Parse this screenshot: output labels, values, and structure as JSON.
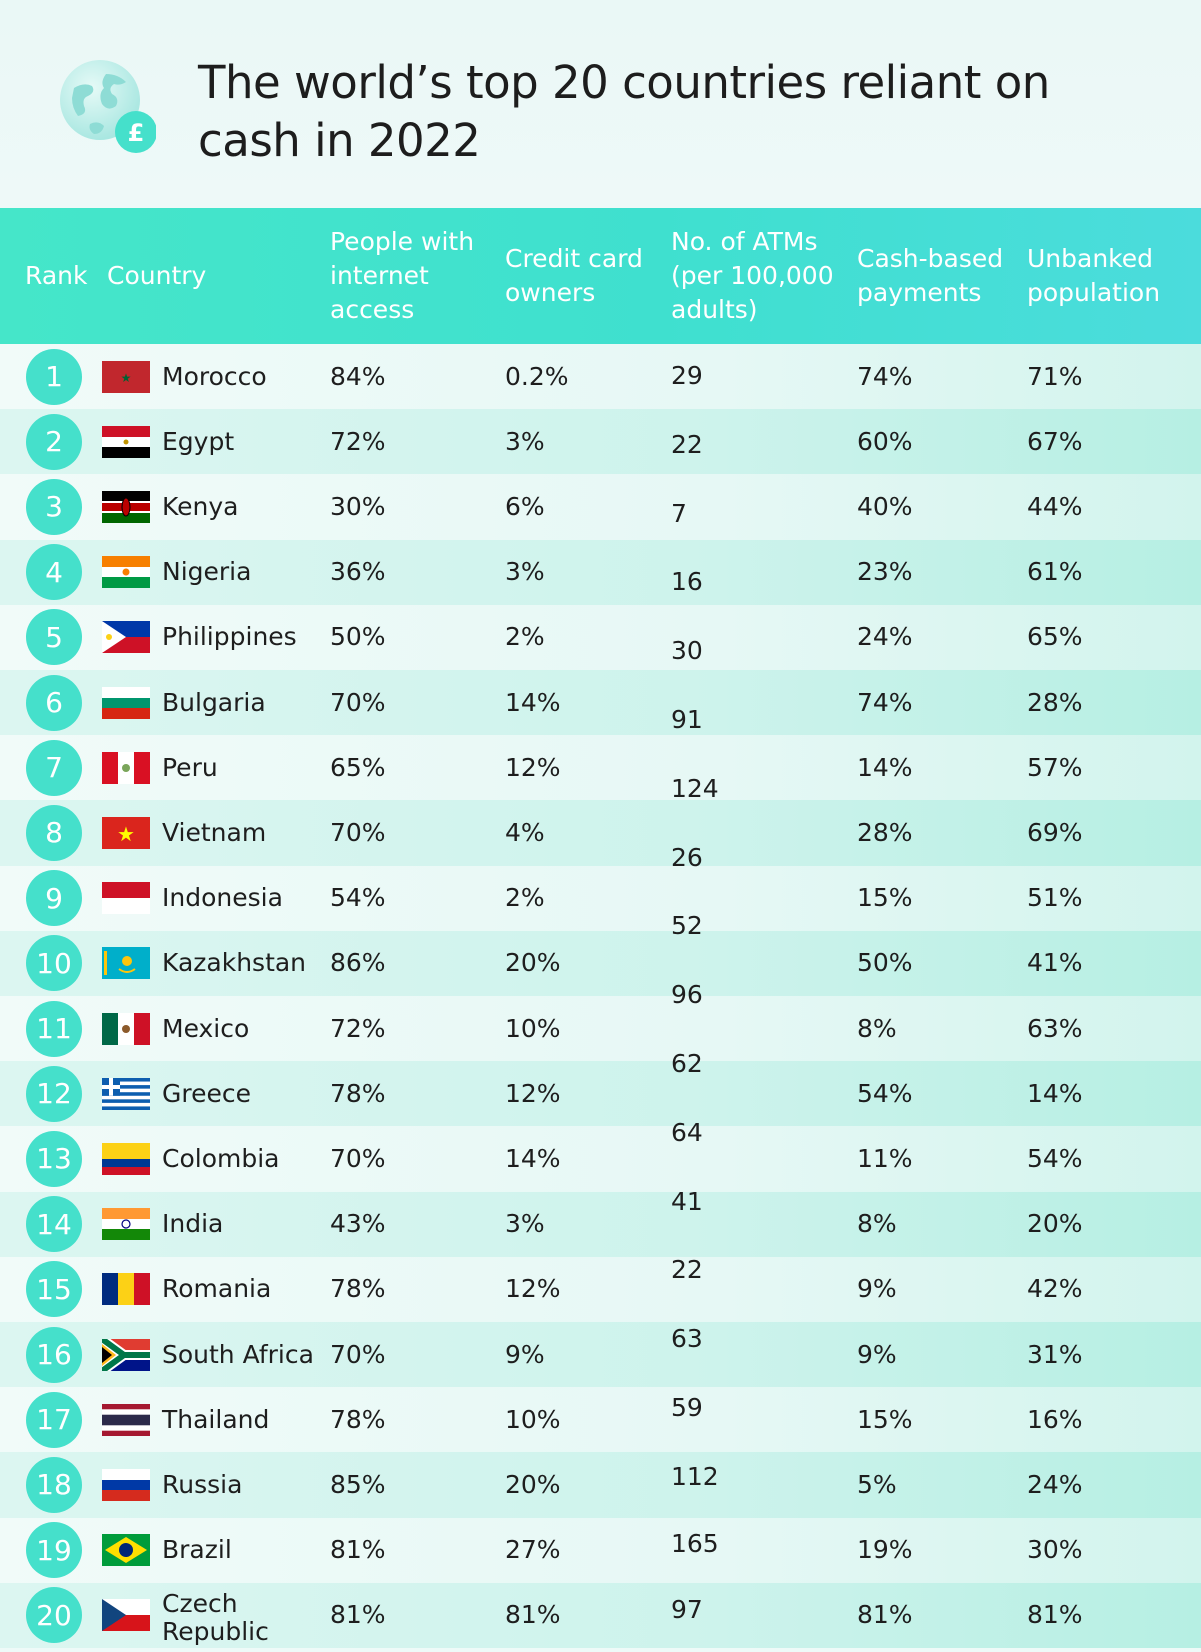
{
  "title": "The world’s top 20 countries reliant on cash in 2022",
  "icons": {
    "logo": "globe-pound-icon",
    "currency_symbol": "£"
  },
  "colors": {
    "accent": "#45e0cb",
    "header_text": "#ffffff",
    "title": "#1d1d1d"
  },
  "chart_data": {
    "type": "table",
    "title": "The world’s top 20 countries reliant on cash in 2022",
    "columns": [
      "Rank",
      "Country",
      "People with internet access",
      "Credit card owners",
      "No. of ATMs (per 100,000 adults)",
      "Cash-based payments",
      "Unbanked population"
    ],
    "rows": [
      {
        "rank": "1",
        "country": "Morocco",
        "flag": "morocco-flag-icon",
        "internet": "84%",
        "credit": "0.2%",
        "atms": "29",
        "cash": "74%",
        "unbanked": "71%"
      },
      {
        "rank": "2",
        "country": "Egypt",
        "flag": "egypt-flag-icon",
        "internet": "72%",
        "credit": "3%",
        "atms": "22",
        "cash": "60%",
        "unbanked": "67%"
      },
      {
        "rank": "3",
        "country": "Kenya",
        "flag": "kenya-flag-icon",
        "internet": "30%",
        "credit": "6%",
        "atms": "7",
        "cash": "40%",
        "unbanked": "44%"
      },
      {
        "rank": "4",
        "country": "Nigeria",
        "flag": "nigeria-flag-icon",
        "internet": "36%",
        "credit": "3%",
        "atms": "16",
        "cash": "23%",
        "unbanked": "61%"
      },
      {
        "rank": "5",
        "country": "Philippines",
        "flag": "philippines-flag-icon",
        "internet": "50%",
        "credit": "2%",
        "atms": "30",
        "cash": "24%",
        "unbanked": "65%"
      },
      {
        "rank": "6",
        "country": "Bulgaria",
        "flag": "bulgaria-flag-icon",
        "internet": "70%",
        "credit": "14%",
        "atms": "91",
        "cash": "74%",
        "unbanked": "28%"
      },
      {
        "rank": "7",
        "country": "Peru",
        "flag": "peru-flag-icon",
        "internet": "65%",
        "credit": "12%",
        "atms": "124",
        "cash": "14%",
        "unbanked": "57%"
      },
      {
        "rank": "8",
        "country": "Vietnam",
        "flag": "vietnam-flag-icon",
        "internet": "70%",
        "credit": "4%",
        "atms": "26",
        "cash": "28%",
        "unbanked": "69%"
      },
      {
        "rank": "9",
        "country": "Indonesia",
        "flag": "indonesia-flag-icon",
        "internet": "54%",
        "credit": "2%",
        "atms": "52",
        "cash": "15%",
        "unbanked": "51%"
      },
      {
        "rank": "10",
        "country": "Kazakhstan",
        "flag": "kazakhstan-flag-icon",
        "internet": "86%",
        "credit": "20%",
        "atms": "96",
        "cash": "50%",
        "unbanked": "41%"
      },
      {
        "rank": "11",
        "country": "Mexico",
        "flag": "mexico-flag-icon",
        "internet": "72%",
        "credit": "10%",
        "atms": "62",
        "cash": "8%",
        "unbanked": "63%"
      },
      {
        "rank": "12",
        "country": "Greece",
        "flag": "greece-flag-icon",
        "internet": "78%",
        "credit": "12%",
        "atms": "64",
        "cash": "54%",
        "unbanked": "14%"
      },
      {
        "rank": "13",
        "country": "Colombia",
        "flag": "colombia-flag-icon",
        "internet": "70%",
        "credit": "14%",
        "atms": "41",
        "cash": "11%",
        "unbanked": "54%"
      },
      {
        "rank": "14",
        "country": "India",
        "flag": "india-flag-icon",
        "internet": "43%",
        "credit": "3%",
        "atms": "22",
        "cash": "8%",
        "unbanked": "20%"
      },
      {
        "rank": "15",
        "country": "Romania",
        "flag": "romania-flag-icon",
        "internet": "78%",
        "credit": "12%",
        "atms": "63",
        "cash": "9%",
        "unbanked": "42%"
      },
      {
        "rank": "16",
        "country": "South Africa",
        "flag": "south-africa-flag-icon",
        "internet": "70%",
        "credit": "9%",
        "atms": "59",
        "cash": "9%",
        "unbanked": "31%"
      },
      {
        "rank": "17",
        "country": "Thailand",
        "flag": "thailand-flag-icon",
        "internet": "78%",
        "credit": "10%",
        "atms": "112",
        "cash": "15%",
        "unbanked": "16%"
      },
      {
        "rank": "18",
        "country": "Russia",
        "flag": "russia-flag-icon",
        "internet": "85%",
        "credit": "20%",
        "atms": "165",
        "cash": "5%",
        "unbanked": "24%"
      },
      {
        "rank": "19",
        "country": "Brazil",
        "flag": "brazil-flag-icon",
        "internet": "81%",
        "credit": "27%",
        "atms": "97",
        "cash": "19%",
        "unbanked": "30%"
      },
      {
        "rank": "20",
        "country": "Czech Republic",
        "flag": "czech-republic-flag-icon",
        "internet": "81%",
        "credit": "81%",
        "atms": "",
        "cash": "81%",
        "unbanked": "81%"
      }
    ]
  }
}
